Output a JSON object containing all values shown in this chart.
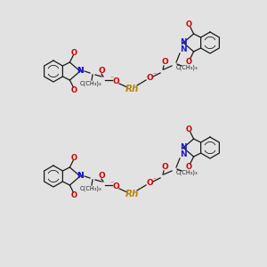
{
  "background_color": "#e2e2e2",
  "figsize": [
    3.0,
    3.0
  ],
  "dpi": 100,
  "colors": {
    "black": "#1a1a1a",
    "red": "#cc0000",
    "blue": "#1a1acc",
    "gold": "#b8860b",
    "bg": "#e2e2e2"
  },
  "unit1_rh": [
    148,
    195
  ],
  "unit2_rh": [
    148,
    90
  ],
  "lw": 0.9
}
